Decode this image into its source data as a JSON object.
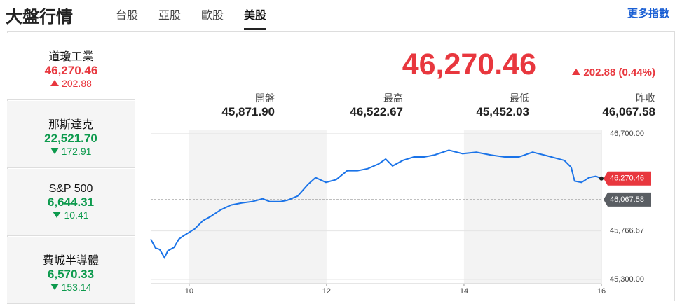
{
  "header": {
    "title": "大盤行情",
    "tabs": [
      "台股",
      "亞股",
      "歐股",
      "美股"
    ],
    "active_tab": 3,
    "link": "更多指數"
  },
  "indices": [
    {
      "name": "道瓊工業",
      "value": "46,270.46",
      "change": "202.88",
      "direction": "up",
      "selected": true
    },
    {
      "name": "那斯達克",
      "value": "22,521.70",
      "change": "172.91",
      "direction": "down",
      "selected": false
    },
    {
      "name": "S&P 500",
      "value": "6,644.31",
      "change": "10.41",
      "direction": "down",
      "selected": false
    },
    {
      "name": "費城半導體",
      "value": "6,570.33",
      "change": "153.14",
      "direction": "down",
      "selected": false
    }
  ],
  "quote": {
    "price": "46,270.46",
    "change": "202.88 (0.44%)",
    "direction": "up",
    "stats": [
      {
        "label": "開盤",
        "value": "45,871.90"
      },
      {
        "label": "最高",
        "value": "46,522.67"
      },
      {
        "label": "最低",
        "value": "45,452.03"
      },
      {
        "label": "昨收",
        "value": "46,067.58"
      }
    ]
  },
  "chart_data": {
    "type": "line",
    "color": "#1a73e8",
    "x": [
      9.44,
      9.51,
      9.57,
      9.64,
      9.69,
      9.78,
      9.85,
      9.92,
      10.0,
      10.08,
      10.2,
      10.31,
      10.46,
      10.61,
      10.77,
      10.92,
      11.07,
      11.17,
      11.33,
      11.43,
      11.58,
      11.73,
      11.84,
      11.99,
      12.14,
      12.3,
      12.45,
      12.6,
      12.76,
      12.86,
      12.96,
      13.11,
      13.27,
      13.42,
      13.57,
      13.78,
      13.98,
      14.18,
      14.39,
      14.59,
      14.8,
      15.0,
      15.2,
      15.46,
      15.56,
      15.61,
      15.71,
      15.82,
      15.92,
      16.0
    ],
    "values": [
      45688,
      45602,
      45589,
      45510,
      45576,
      45609,
      45688,
      45721,
      45753,
      45786,
      45865,
      45905,
      45970,
      46016,
      46036,
      46049,
      46076,
      46049,
      46049,
      46062,
      46102,
      46214,
      46279,
      46233,
      46260,
      46345,
      46345,
      46365,
      46411,
      46457,
      46391,
      46444,
      46477,
      46477,
      46496,
      46542,
      46509,
      46523,
      46496,
      46477,
      46477,
      46523,
      46490,
      46444,
      46378,
      46246,
      46233,
      46279,
      46292,
      46270.46
    ],
    "xlim": [
      9.44,
      16
    ],
    "ylim": [
      45260,
      46733
    ],
    "xticks": [
      10,
      12,
      14,
      16
    ],
    "yticks": [
      {
        "value": 45300,
        "label": "45,300.00"
      },
      {
        "value": 45766.67,
        "label": "45,766.67"
      },
      {
        "value": 46700,
        "label": "46,700.00"
      }
    ],
    "last": {
      "value": 46270.46,
      "label": "46,270.46"
    },
    "previous_close": {
      "value": 46067.58,
      "label": "46,067.58"
    }
  }
}
